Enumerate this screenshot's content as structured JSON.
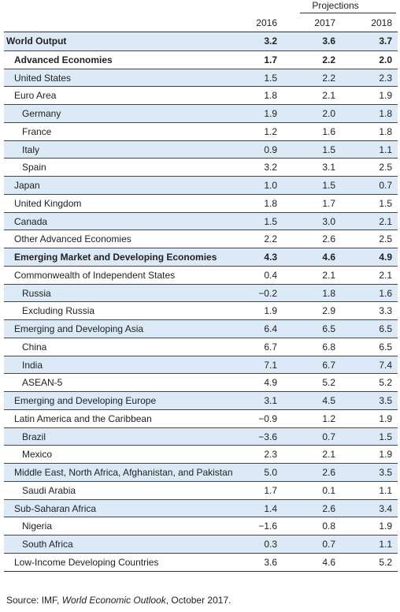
{
  "header": {
    "projections_label": "Projections",
    "years": [
      "2016",
      "2017",
      "2018"
    ]
  },
  "rows": [
    {
      "label": "World Output",
      "values": [
        "3.2",
        "3.6",
        "3.7"
      ],
      "indent": 0,
      "bold": true,
      "shaded": true
    },
    {
      "label": "Advanced Economies",
      "values": [
        "1.7",
        "2.2",
        "2.0"
      ],
      "indent": 1,
      "bold": true,
      "shaded": false
    },
    {
      "label": "United States",
      "values": [
        "1.5",
        "2.2",
        "2.3"
      ],
      "indent": 1,
      "bold": false,
      "shaded": true
    },
    {
      "label": "Euro Area",
      "values": [
        "1.8",
        "2.1",
        "1.9"
      ],
      "indent": 1,
      "bold": false,
      "shaded": false
    },
    {
      "label": "Germany",
      "values": [
        "1.9",
        "2.0",
        "1.8"
      ],
      "indent": 2,
      "bold": false,
      "shaded": true
    },
    {
      "label": "France",
      "values": [
        "1.2",
        "1.6",
        "1.8"
      ],
      "indent": 2,
      "bold": false,
      "shaded": false
    },
    {
      "label": "Italy",
      "values": [
        "0.9",
        "1.5",
        "1.1"
      ],
      "indent": 2,
      "bold": false,
      "shaded": true
    },
    {
      "label": "Spain",
      "values": [
        "3.2",
        "3.1",
        "2.5"
      ],
      "indent": 2,
      "bold": false,
      "shaded": false
    },
    {
      "label": "Japan",
      "values": [
        "1.0",
        "1.5",
        "0.7"
      ],
      "indent": 1,
      "bold": false,
      "shaded": true
    },
    {
      "label": "United Kingdom",
      "values": [
        "1.8",
        "1.7",
        "1.5"
      ],
      "indent": 1,
      "bold": false,
      "shaded": false
    },
    {
      "label": "Canada",
      "values": [
        "1.5",
        "3.0",
        "2.1"
      ],
      "indent": 1,
      "bold": false,
      "shaded": true
    },
    {
      "label": "Other Advanced Economies",
      "values": [
        "2.2",
        "2.6",
        "2.5"
      ],
      "indent": 1,
      "bold": false,
      "shaded": false
    },
    {
      "label": "Emerging Market and Developing Economies",
      "values": [
        "4.3",
        "4.6",
        "4.9"
      ],
      "indent": 1,
      "bold": true,
      "shaded": true
    },
    {
      "label": "Commonwealth of Independent States",
      "values": [
        "0.4",
        "2.1",
        "2.1"
      ],
      "indent": 1,
      "bold": false,
      "shaded": false
    },
    {
      "label": "Russia",
      "values": [
        "−0.2",
        "1.8",
        "1.6"
      ],
      "indent": 2,
      "bold": false,
      "shaded": true
    },
    {
      "label": "Excluding Russia",
      "values": [
        "1.9",
        "2.9",
        "3.3"
      ],
      "indent": 2,
      "bold": false,
      "shaded": false
    },
    {
      "label": "Emerging and Developing Asia",
      "values": [
        "6.4",
        "6.5",
        "6.5"
      ],
      "indent": 1,
      "bold": false,
      "shaded": true
    },
    {
      "label": "China",
      "values": [
        "6.7",
        "6.8",
        "6.5"
      ],
      "indent": 2,
      "bold": false,
      "shaded": false
    },
    {
      "label": "India",
      "values": [
        "7.1",
        "6.7",
        "7.4"
      ],
      "indent": 2,
      "bold": false,
      "shaded": true
    },
    {
      "label": "ASEAN-5",
      "values": [
        "4.9",
        "5.2",
        "5.2"
      ],
      "indent": 2,
      "bold": false,
      "shaded": false
    },
    {
      "label": "Emerging and Developing Europe",
      "values": [
        "3.1",
        "4.5",
        "3.5"
      ],
      "indent": 1,
      "bold": false,
      "shaded": true
    },
    {
      "label": "Latin America and the Caribbean",
      "values": [
        "−0.9",
        "1.2",
        "1.9"
      ],
      "indent": 1,
      "bold": false,
      "shaded": false
    },
    {
      "label": "Brazil",
      "values": [
        "−3.6",
        "0.7",
        "1.5"
      ],
      "indent": 2,
      "bold": false,
      "shaded": true
    },
    {
      "label": "Mexico",
      "values": [
        "2.3",
        "2.1",
        "1.9"
      ],
      "indent": 2,
      "bold": false,
      "shaded": false
    },
    {
      "label": "Middle East, North Africa, Afghanistan, and Pakistan",
      "values": [
        "5.0",
        "2.6",
        "3.5"
      ],
      "indent": 1,
      "bold": false,
      "shaded": true
    },
    {
      "label": "Saudi Arabia",
      "values": [
        "1.7",
        "0.1",
        "1.1"
      ],
      "indent": 2,
      "bold": false,
      "shaded": false
    },
    {
      "label": "Sub-Saharan Africa",
      "values": [
        "1.4",
        "2.6",
        "3.4"
      ],
      "indent": 1,
      "bold": false,
      "shaded": true
    },
    {
      "label": "Nigeria",
      "values": [
        "−1.6",
        "0.8",
        "1.9"
      ],
      "indent": 2,
      "bold": false,
      "shaded": false
    },
    {
      "label": "South Africa",
      "values": [
        "0.3",
        "0.7",
        "1.1"
      ],
      "indent": 2,
      "bold": false,
      "shaded": true
    },
    {
      "label": "Low-Income Developing Countries",
      "values": [
        "3.6",
        "4.6",
        "5.2"
      ],
      "indent": 1,
      "bold": false,
      "shaded": false
    }
  ],
  "source": {
    "prefix": "Source: IMF, ",
    "publication": "World Economic Outlook",
    "suffix": ", October 2017."
  }
}
